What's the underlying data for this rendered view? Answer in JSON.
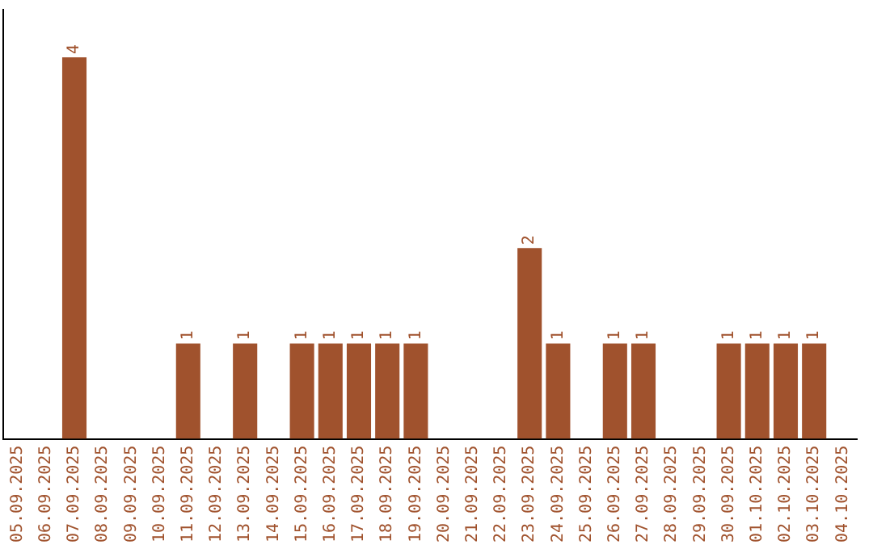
{
  "chart_data": {
    "type": "bar",
    "categories": [
      "05.09.2025",
      "06.09.2025",
      "07.09.2025",
      "08.09.2025",
      "09.09.2025",
      "10.09.2025",
      "11.09.2025",
      "12.09.2025",
      "13.09.2025",
      "14.09.2025",
      "15.09.2025",
      "16.09.2025",
      "17.09.2025",
      "18.09.2025",
      "19.09.2025",
      "20.09.2025",
      "21.09.2025",
      "22.09.2025",
      "23.09.2025",
      "24.09.2025",
      "25.09.2025",
      "26.09.2025",
      "27.09.2025",
      "28.09.2025",
      "29.09.2025",
      "30.09.2025",
      "01.10.2025",
      "02.10.2025",
      "03.10.2025",
      "04.10.2025"
    ],
    "values": [
      0,
      0,
      4,
      0,
      0,
      0,
      1,
      0,
      1,
      0,
      1,
      1,
      1,
      1,
      1,
      0,
      0,
      0,
      2,
      1,
      0,
      1,
      1,
      0,
      0,
      1,
      1,
      1,
      1,
      0
    ],
    "value_labels": [
      null,
      null,
      "4",
      null,
      null,
      null,
      "1",
      null,
      "1",
      null,
      "1",
      "1",
      "1",
      "1",
      "1",
      null,
      null,
      null,
      "2",
      "1",
      null,
      "1",
      "1",
      null,
      null,
      "1",
      "1",
      "1",
      "1",
      null
    ],
    "color": "#a0522d",
    "grid": false,
    "legend": false
  }
}
